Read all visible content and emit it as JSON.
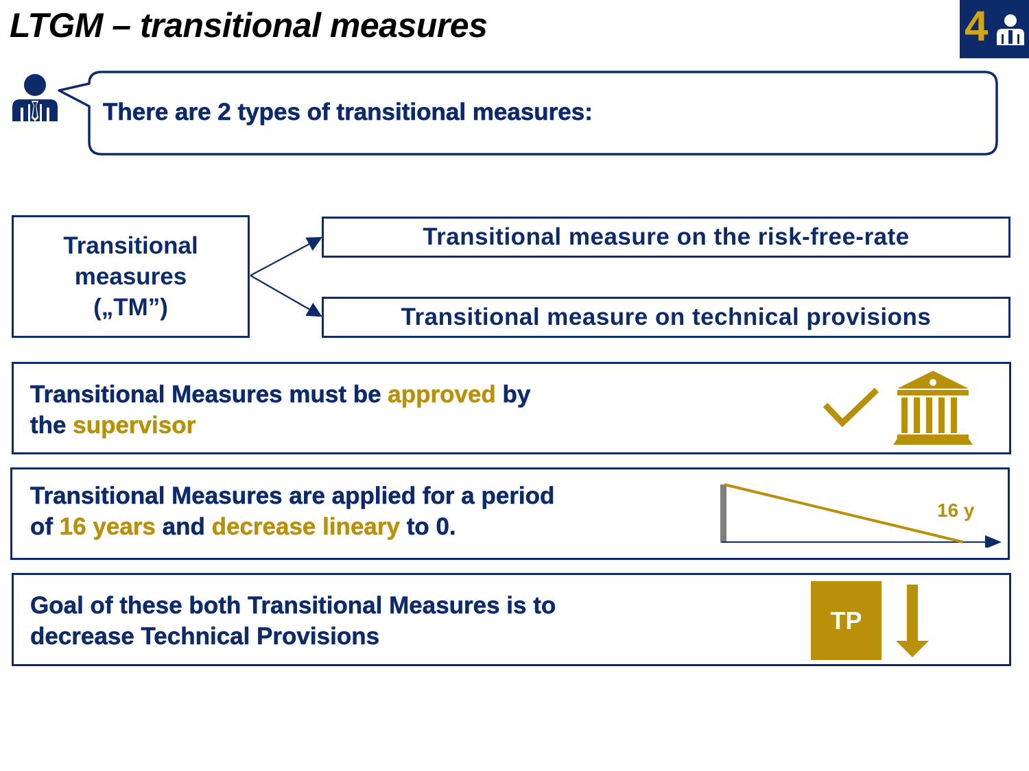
{
  "title": "LTGM – transitional measures",
  "logo": {
    "number": "4"
  },
  "bubble": {
    "text": "There are 2 types of transitional measures:"
  },
  "tm": {
    "label": "Transitional\nmeasures\n(„TM”)"
  },
  "options": [
    {
      "label": "Transitional measure on the risk-free-rate"
    },
    {
      "label": "Transitional measure on technical provisions"
    }
  ],
  "panels": {
    "approval": {
      "line1_a": "Transitional Measures must be ",
      "line1_hl": "approved",
      "line1_b": " by",
      "line2_a": "the ",
      "line2_hl": "supervisor"
    },
    "period": {
      "line1": "Transitional Measures are applied for a period",
      "line2_a": "of ",
      "line2_hl1": "16 years",
      "line2_b": " and ",
      "line2_hl2": "decrease lineary",
      "line2_c": " to 0.",
      "graph_label": "16 y"
    },
    "goal": {
      "line1": "Goal of these both Transitional Measures is to",
      "line2": "decrease Technical Provisions",
      "tp_label": "TP"
    }
  },
  "colors": {
    "navy": "#0d2a6b",
    "gold": "#b8900a",
    "logo_gold": "#d4a514"
  },
  "icons": [
    "person-icon",
    "checkmark-icon",
    "bank-icon",
    "down-arrow-icon"
  ]
}
